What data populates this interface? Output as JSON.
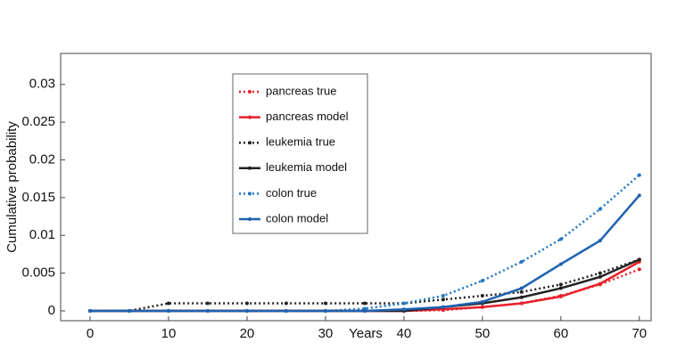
{
  "chart_data": {
    "type": "line",
    "x_label": "Years",
    "y_label": "Cumulative probability",
    "x": [
      0,
      5,
      10,
      15,
      20,
      25,
      30,
      35,
      40,
      45,
      50,
      55,
      60,
      65,
      70
    ],
    "series": [
      {
        "name": "pancreas true",
        "color": "#e8202a",
        "style": "dotted",
        "values": [
          0,
          0,
          0,
          0,
          0,
          0,
          0,
          0,
          0,
          0.0001,
          0.0005,
          0.001,
          0.002,
          0.0035,
          0.0055
        ]
      },
      {
        "name": "pancreas model",
        "color": "#e8202a",
        "style": "solid",
        "values": [
          0,
          0,
          0,
          0,
          0,
          0,
          0,
          0,
          0,
          0.0002,
          0.0005,
          0.001,
          0.0019,
          0.0036,
          0.0065
        ]
      },
      {
        "name": "leukemia true",
        "color": "#222222",
        "style": "dotted",
        "values": [
          0,
          0,
          0.001,
          0.001,
          0.001,
          0.001,
          0.001,
          0.001,
          0.001,
          0.0015,
          0.002,
          0.0025,
          0.0035,
          0.005,
          0.0068
        ]
      },
      {
        "name": "leukemia model",
        "color": "#222222",
        "style": "solid",
        "values": [
          0,
          0,
          0,
          0,
          0,
          0,
          0,
          0,
          0,
          0.0005,
          0.001,
          0.0018,
          0.003,
          0.0045,
          0.0068
        ]
      },
      {
        "name": "colon true",
        "color": "#1f77c4",
        "style": "dotted",
        "values": [
          0,
          0,
          0,
          0,
          0,
          0,
          0,
          0.0003,
          0.001,
          0.002,
          0.004,
          0.0065,
          0.0095,
          0.0135,
          0.018
        ]
      },
      {
        "name": "colon model",
        "color": "#1f62b0",
        "style": "solid",
        "values": [
          0,
          0,
          0,
          0,
          0,
          0,
          0,
          0,
          0.0002,
          0.0005,
          0.0012,
          0.003,
          0.0062,
          0.0093,
          0.0153
        ]
      }
    ],
    "xlim": [
      -3.75,
      71.5
    ],
    "xticks": [
      0,
      10,
      20,
      30,
      40,
      50,
      60,
      70
    ],
    "ylim": [
      -0.0013,
      0.0341
    ],
    "yticks": [
      0,
      0.005,
      0.01,
      0.015,
      0.02,
      0.025,
      0.03
    ]
  }
}
